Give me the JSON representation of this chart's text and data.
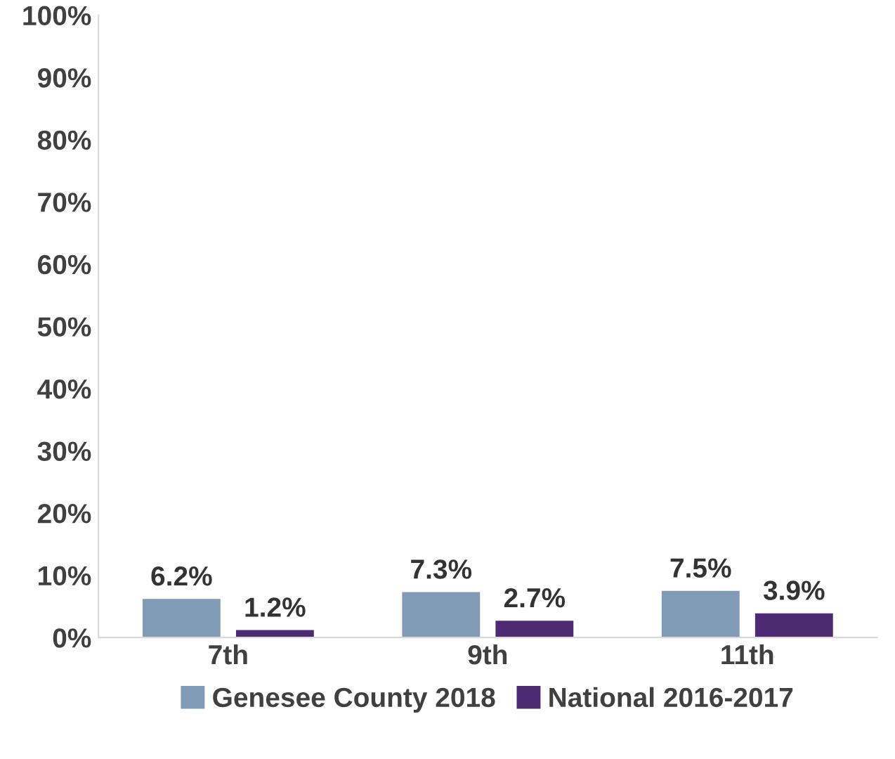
{
  "chart_data": {
    "type": "bar",
    "categories": [
      "7th",
      "9th",
      "11th"
    ],
    "series": [
      {
        "name": "Genesee County 2018",
        "color": "#7f9bb5",
        "values": [
          6.2,
          7.3,
          7.5
        ],
        "value_labels": [
          "6.2%",
          "7.3%",
          "7.5%"
        ]
      },
      {
        "name": "National 2016-2017",
        "color": "#4e2a72",
        "values": [
          1.2,
          2.7,
          3.9
        ],
        "value_labels": [
          "1.2%",
          "2.7%",
          "3.9%"
        ]
      }
    ],
    "ylim": [
      0,
      100
    ],
    "yticks": [
      {
        "value": 0,
        "label": "0%"
      },
      {
        "value": 10,
        "label": "10%"
      },
      {
        "value": 20,
        "label": "20%"
      },
      {
        "value": 30,
        "label": "30%"
      },
      {
        "value": 40,
        "label": "40%"
      },
      {
        "value": 50,
        "label": "50%"
      },
      {
        "value": 60,
        "label": "60%"
      },
      {
        "value": 70,
        "label": "70%"
      },
      {
        "value": 80,
        "label": "80%"
      },
      {
        "value": 90,
        "label": "90%"
      },
      {
        "value": 100,
        "label": "100%"
      }
    ],
    "grid": false,
    "legend": "bottom"
  }
}
